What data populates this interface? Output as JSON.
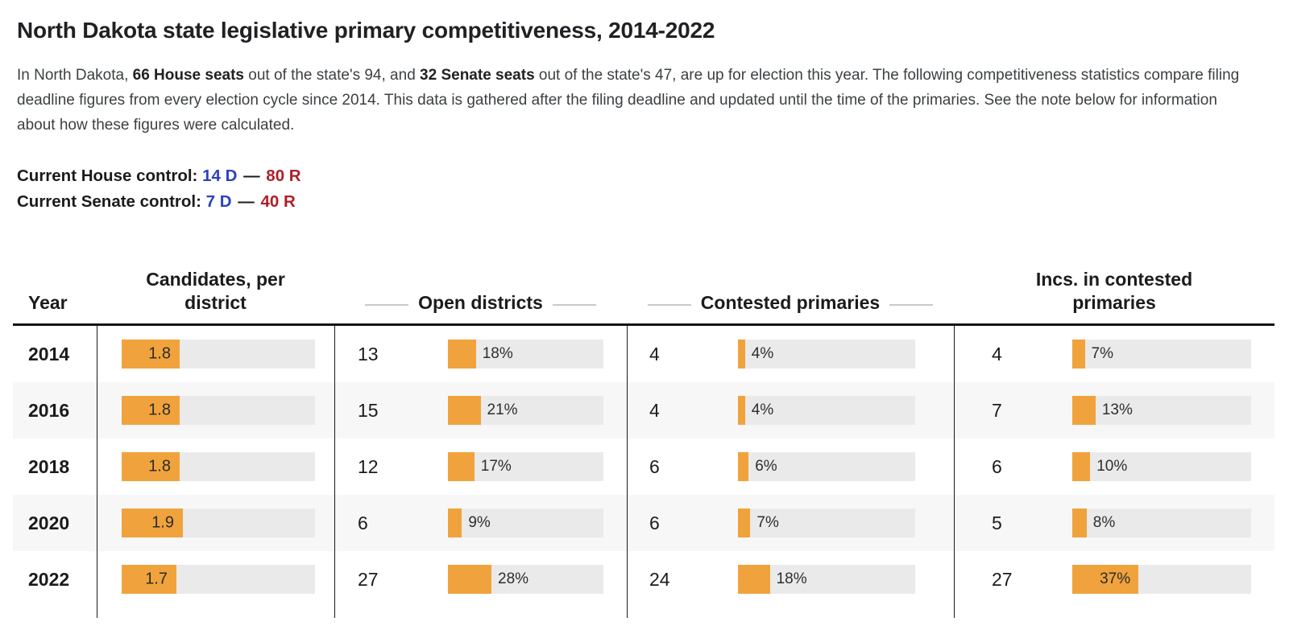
{
  "title": "North Dakota state legislative primary competitiveness, 2014-2022",
  "intro": {
    "part1": "In North Dakota, ",
    "bold1": "66 House seats",
    "part2": " out of the state's 94, and ",
    "bold2": "32 Senate seats",
    "part3": " out of the state's 47, are up for election this year. The following competitiveness statistics compare filing deadline figures from every election cycle since 2014. This data is gathered after the filing deadline and updated until the time of the primaries. See the note below for information about how these figures were calculated."
  },
  "control": {
    "house": {
      "label": "Current House control:",
      "dem": "14 D",
      "sep": "—",
      "rep": "80 R"
    },
    "senate": {
      "label": "Current Senate control:",
      "dem": "7 D",
      "sep": "—",
      "rep": "40 R"
    }
  },
  "colors": {
    "bar_orange": "#F0A33C",
    "track_gray": "#EAEAEA",
    "dem_blue": "#2B43BE",
    "rep_red": "#B01E28",
    "row_alt_gray": "#F7F7F7",
    "rule_black": "#141414"
  },
  "table": {
    "headers": {
      "year": "Year",
      "candidates": "Candidates, per district",
      "open": "Open districts",
      "contested": "Contested primaries",
      "incs": "Incs. in contested primaries"
    }
  },
  "chart_data": {
    "type": "table",
    "title": "North Dakota state legislative primary competitiveness, 2014-2022",
    "columns": [
      "Year",
      "Candidates, per district",
      "Open districts",
      "Contested primaries",
      "Incs. in contested primaries"
    ],
    "years": [
      "2014",
      "2016",
      "2018",
      "2020",
      "2022"
    ],
    "series": [
      {
        "name": "Candidates, per district",
        "values": [
          1.8,
          1.8,
          1.8,
          1.9,
          1.7
        ]
      },
      {
        "name": "Open districts (count)",
        "values": [
          13,
          15,
          12,
          6,
          27
        ]
      },
      {
        "name": "Open districts (%)",
        "values": [
          18,
          21,
          17,
          9,
          28
        ]
      },
      {
        "name": "Contested primaries (count)",
        "values": [
          4,
          4,
          6,
          6,
          24
        ]
      },
      {
        "name": "Contested primaries (%)",
        "values": [
          4,
          4,
          6,
          7,
          18
        ]
      },
      {
        "name": "Incs. in contested primaries (count)",
        "values": [
          4,
          7,
          6,
          5,
          27
        ]
      },
      {
        "name": "Incs. in contested primaries (%)",
        "values": [
          7,
          13,
          10,
          8,
          37
        ]
      }
    ],
    "bar_scales": {
      "candidates_axis_max": 6,
      "percent_axis_max": 100
    },
    "layout": {
      "alternating_row_shading": true,
      "bars": "horizontal",
      "legend": "none"
    }
  }
}
